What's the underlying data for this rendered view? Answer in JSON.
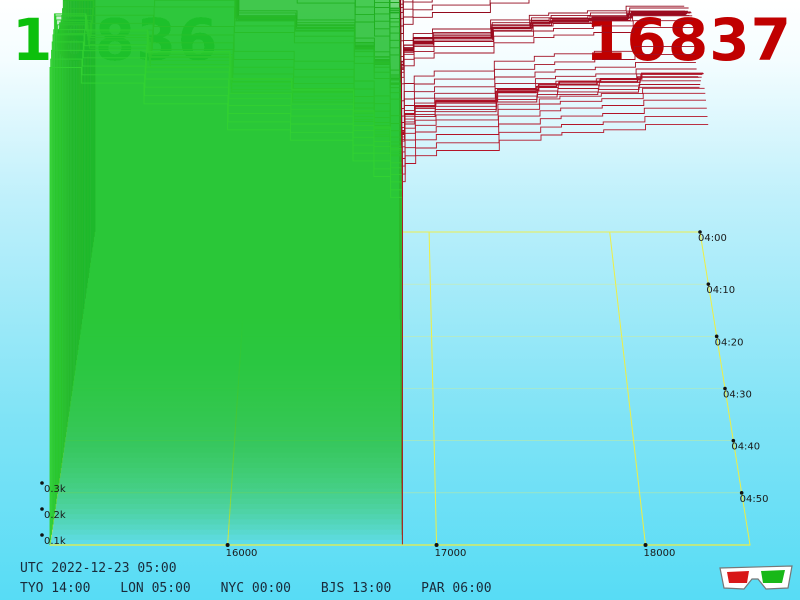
{
  "header": {
    "bid": "16836",
    "ask": "16837",
    "bid_color": "#0cc00c",
    "ask_color": "#c00000"
  },
  "footer": {
    "utc": "UTC 2022-12-23 05:00",
    "clocks": [
      "TYO 14:00",
      "LON 05:00",
      "NYC 00:00",
      "BJS 13:00",
      "PAR 06:00"
    ]
  },
  "chart_data": {
    "type": "area",
    "title": "",
    "xlabel": "",
    "ylabel": "",
    "x_tick_labels": [
      "16000",
      "17000",
      "18000"
    ],
    "x_ticks": [
      16000,
      17000,
      18000
    ],
    "xlim": [
      15150,
      18500
    ],
    "z_tick_labels": [
      "0.1k",
      "0.2k",
      "0.3k"
    ],
    "z_ticks": [
      100,
      200,
      300
    ],
    "time_tick_labels": [
      "04:00",
      "04:10",
      "04:20",
      "04:30",
      "04:40",
      "04:50"
    ],
    "time_range": [
      "04:00",
      "05:00"
    ],
    "mid_price": 16836.5,
    "series": [
      {
        "name": "",
        "side": "bid",
        "color": "#10b810",
        "price_steps": [
          15150,
          15300,
          15600,
          16000,
          16300,
          16600,
          16700,
          16780,
          16836
        ],
        "cumulative_volume": [
          1840,
          1780,
          1700,
          1600,
          1560,
          1480,
          1420,
          1340,
          0
        ]
      },
      {
        "name": "",
        "side": "ask",
        "color": "#a00000",
        "price_steps": [
          16837,
          16850,
          16900,
          17000,
          17300,
          17500,
          17600,
          17800,
          18000,
          18300
        ],
        "cumulative_volume": [
          0,
          1400,
          1470,
          1500,
          1520,
          1560,
          1580,
          1590,
          1600,
          1620
        ]
      }
    ],
    "grid": true,
    "legend": "none"
  }
}
